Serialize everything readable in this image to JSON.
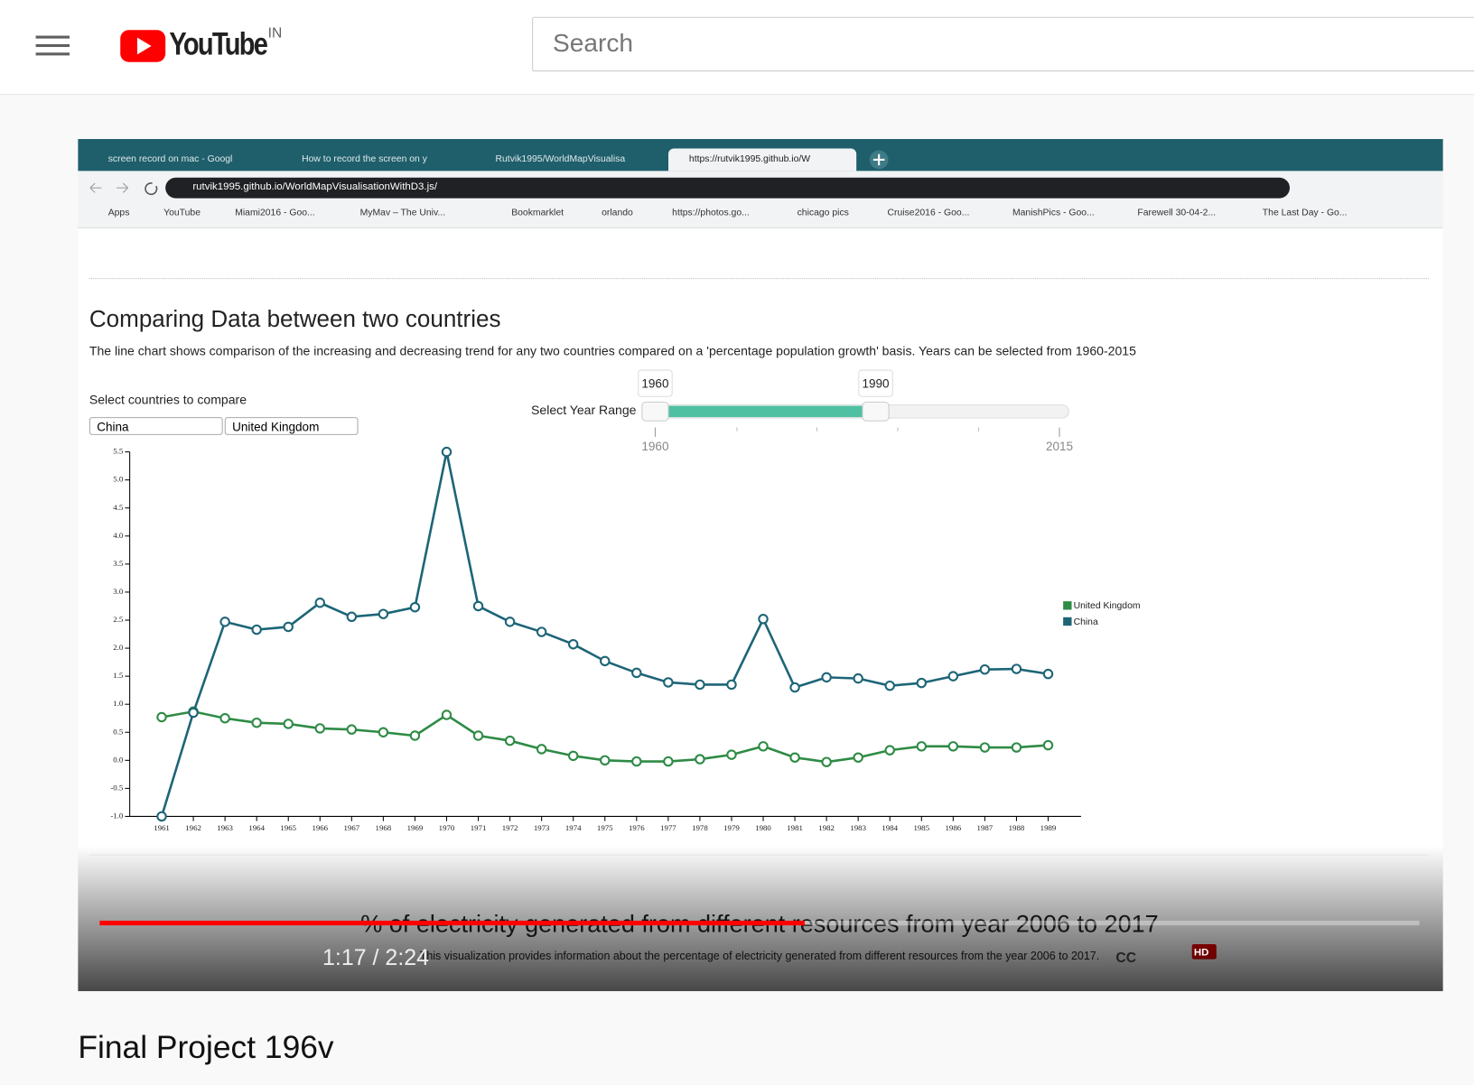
{
  "header": {
    "logo": "YouTube",
    "region": "IN",
    "search_placeholder": "Search"
  },
  "browser": {
    "tabs": [
      "screen record on mac - Googl",
      "How to record the screen on y",
      "Rutvik1995/WorldMapVisualisa",
      "https://rutvik1995.github.io/W"
    ],
    "url": "rutvik1995.github.io/WorldMapVisualisationWithD3.js/",
    "bookmarks": [
      "Apps",
      "YouTube",
      "Miami2016 - Goo...",
      "MyMav – The Univ...",
      "Bookmarklet",
      "orlando",
      "https://photos.go...",
      "chicago pics",
      "Cruise2016 - Goo...",
      "ManishPics - Goo...",
      "Farewell 30-04-2...",
      "The Last Day - Go..."
    ]
  },
  "page": {
    "heading": "Comparing Data between two countries",
    "description": "The line chart shows comparison of the increasing and decreasing trend for any two countries compared on a 'percentage population growth' basis. Years can be selected from 1960-2015",
    "country_prompt": "Select countries to compare",
    "country_1": "China",
    "country_2": "United Kingdom",
    "year_range_label": "Select Year Range",
    "year_range": {
      "min": 1960,
      "max": 2015,
      "low": 1960,
      "high": 1990
    },
    "next_heading": "% of electricity generated from different resources from year 2006 to 2017",
    "next_description": "This visualization provides information about the percentage of electricity generated from different resources from the year 2006 to 2017."
  },
  "chart_data": {
    "type": "line",
    "categories": [
      "1961",
      "1962",
      "1963",
      "1964",
      "1965",
      "1966",
      "1967",
      "1968",
      "1969",
      "1970",
      "1971",
      "1972",
      "1973",
      "1974",
      "1975",
      "1976",
      "1977",
      "1978",
      "1979",
      "1980",
      "1981",
      "1982",
      "1983",
      "1984",
      "1985",
      "1986",
      "1987",
      "1988",
      "1989"
    ],
    "series": [
      {
        "name": "United Kingdom",
        "color": "#2e8b45",
        "values": [
          0.77,
          0.87,
          0.75,
          0.67,
          0.65,
          0.57,
          0.55,
          0.5,
          0.44,
          0.81,
          0.44,
          0.35,
          0.2,
          0.08,
          0,
          -0.02,
          -0.02,
          0.02,
          0.1,
          0.25,
          0.05,
          -0.03,
          0.05,
          0.18,
          0.25,
          0.25,
          0.23,
          0.23,
          0.27
        ]
      },
      {
        "name": "China",
        "color": "#1d6577",
        "values": [
          -1,
          0.85,
          2.47,
          2.33,
          2.38,
          2.81,
          2.56,
          2.61,
          2.73,
          5.5,
          2.75,
          2.47,
          2.29,
          2.07,
          1.77,
          1.56,
          1.39,
          1.35,
          1.35,
          2.52,
          1.3,
          1.48,
          1.46,
          1.33,
          1.38,
          1.5,
          1.62,
          1.63,
          1.54
        ]
      }
    ],
    "ylim": [
      -1,
      5.5
    ],
    "yticks": [
      {
        "value": -1,
        "label": "-1.0"
      },
      {
        "value": -0.5,
        "label": "-0.5"
      },
      {
        "value": 0,
        "label": "0.0"
      },
      {
        "value": 0.5,
        "label": "0.5"
      },
      {
        "value": 1,
        "label": "1.0"
      },
      {
        "value": 1.5,
        "label": "1.5"
      },
      {
        "value": 2,
        "label": "2.0"
      },
      {
        "value": 2.5,
        "label": "2.5"
      },
      {
        "value": 3,
        "label": "3.0"
      },
      {
        "value": 3.5,
        "label": "3.5"
      },
      {
        "value": 4,
        "label": "4.0"
      },
      {
        "value": 4.5,
        "label": "4.5"
      },
      {
        "value": 5,
        "label": "5.0"
      },
      {
        "value": 5.5,
        "label": "5.5"
      }
    ],
    "grid": false
  },
  "player": {
    "time": "1:17 / 2:24",
    "cc": "CC",
    "hd_badge": "HD"
  },
  "video_title": "Final Project 196v"
}
